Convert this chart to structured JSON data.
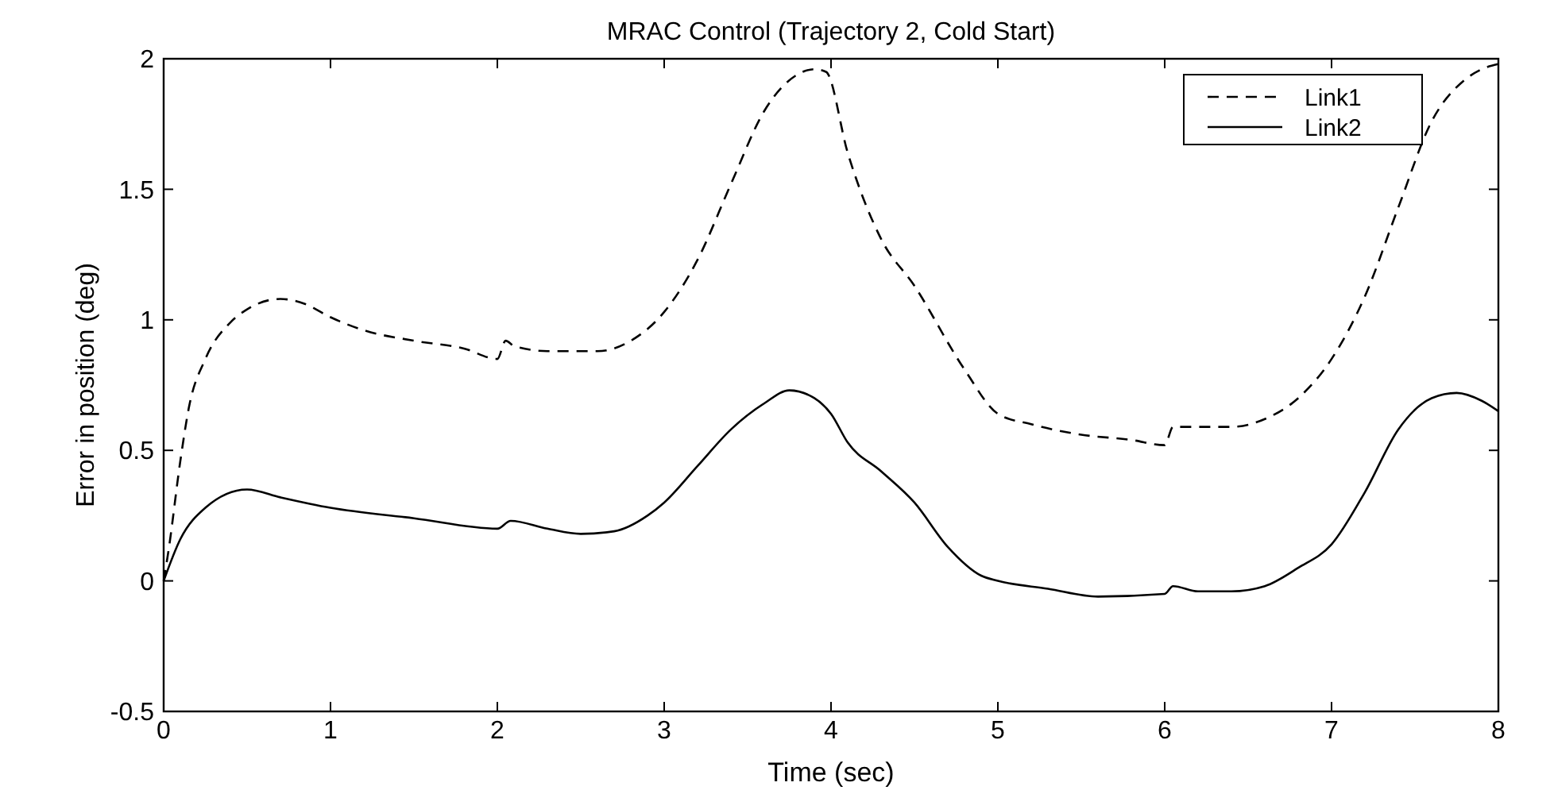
{
  "chart_data": {
    "type": "line",
    "title": "MRAC Control (Trajectory 2, Cold Start)",
    "xlabel": "Time (sec)",
    "ylabel": "Error in position (deg)",
    "xlim": [
      0,
      8
    ],
    "xticks": [
      0,
      1,
      2,
      3,
      4,
      5,
      6,
      7,
      8
    ],
    "ylim": [
      -0.5,
      2
    ],
    "yticks": [
      -0.5,
      0,
      0.5,
      1,
      1.5,
      2
    ],
    "grid": false,
    "legend": "top right",
    "series": [
      {
        "name": "Link1",
        "color": "#000000",
        "line_style": "dashed",
        "x": [
          0,
          0.03,
          0.1,
          0.15,
          0.25,
          0.4,
          0.5,
          0.7,
          0.85,
          1,
          1.2,
          1.5,
          1.8,
          2,
          2.05,
          2.1,
          2.3,
          2.6,
          2.8,
          3,
          3.2,
          3.4,
          3.6,
          3.8,
          3.9,
          3.97,
          4.1,
          4.3,
          4.5,
          4.8,
          5,
          5.2,
          5.5,
          5.8,
          6,
          6.05,
          6.1,
          6.4,
          6.6,
          6.8,
          7,
          7.2,
          7.4,
          7.6,
          7.8,
          7.9,
          8
        ],
        "values": [
          0,
          0.12,
          0.46,
          0.66,
          0.85,
          0.99,
          1.04,
          1.08,
          1.06,
          1.01,
          0.96,
          0.92,
          0.89,
          0.85,
          0.92,
          0.9,
          0.88,
          0.88,
          0.92,
          1.03,
          1.23,
          1.52,
          1.8,
          1.94,
          1.96,
          1.95,
          1.64,
          1.31,
          1.13,
          0.81,
          0.64,
          0.6,
          0.56,
          0.54,
          0.52,
          0.59,
          0.59,
          0.59,
          0.62,
          0.7,
          0.85,
          1.09,
          1.43,
          1.76,
          1.92,
          1.96,
          1.98
        ]
      },
      {
        "name": "Link2",
        "color": "#000000",
        "line_style": "solid",
        "x": [
          0,
          0.1,
          0.25,
          0.5,
          0.7,
          1,
          1.5,
          2,
          2.08,
          2.3,
          2.5,
          2.7,
          2.9,
          3,
          3.2,
          3.4,
          3.6,
          3.75,
          3.9,
          4,
          4.1,
          4.3,
          4.5,
          4.7,
          4.9,
          5,
          5.3,
          5.6,
          6,
          6.05,
          6.2,
          6.4,
          6.6,
          6.8,
          7,
          7.2,
          7.4,
          7.6,
          7.75,
          7.9,
          8
        ],
        "values": [
          0,
          0.16,
          0.28,
          0.35,
          0.32,
          0.28,
          0.24,
          0.2,
          0.23,
          0.2,
          0.18,
          0.19,
          0.25,
          0.3,
          0.44,
          0.58,
          0.68,
          0.73,
          0.7,
          0.64,
          0.53,
          0.42,
          0.3,
          0.13,
          0.02,
          0,
          -0.03,
          -0.06,
          -0.05,
          -0.02,
          -0.04,
          -0.04,
          -0.02,
          0.05,
          0.14,
          0.34,
          0.58,
          0.7,
          0.72,
          0.69,
          0.65
        ]
      }
    ]
  }
}
